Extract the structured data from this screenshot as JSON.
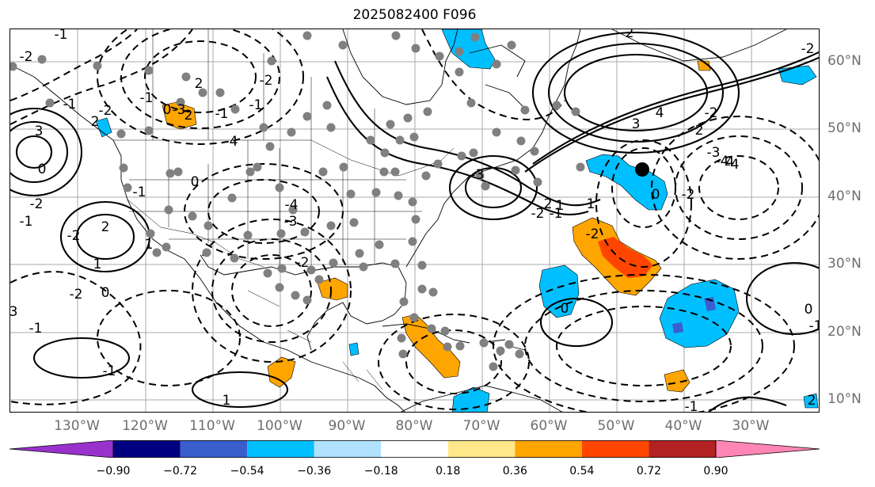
{
  "title": "2025082400 F096",
  "lon_labels": [
    "130°W",
    "120°W",
    "110°W",
    "100°W",
    "90°W",
    "80°W",
    "70°W",
    "60°W",
    "50°W",
    "40°W",
    "30°W"
  ],
  "lat_labels": [
    "60°N",
    "50°N",
    "40°N",
    "30°N",
    "20°N",
    "10°N"
  ],
  "colorbar": {
    "tick_labels": [
      "−0.90",
      "−0.72",
      "−0.54",
      "−0.36",
      "−0.18",
      "0.18",
      "0.36",
      "0.54",
      "0.72",
      "0.90"
    ],
    "colors": [
      "#9932cc",
      "#000080",
      "#3a5fcd",
      "#00bfff",
      "#b0e2ff",
      "#ffffff",
      "#ffe88a",
      "#ffa500",
      "#ff4500",
      "#b22222",
      "#ff85b5"
    ]
  },
  "contour_labels": [
    "3",
    "-1",
    "-2",
    "-1",
    "2",
    "2",
    "2",
    "-3",
    "-4",
    "-2",
    "-1",
    "-1",
    "-1",
    "0",
    "-2",
    "-1",
    "-2",
    "-1",
    "0",
    "1",
    "-4",
    "-3",
    "-2",
    "2",
    "1",
    "0",
    "-2",
    "-1",
    "3",
    "0",
    "-2",
    "-3",
    "-4",
    "4",
    "3",
    "2",
    "2",
    "1",
    "-2",
    "-1",
    "-1",
    "-2",
    "-2",
    "-3",
    "-4",
    "-4",
    "-2",
    "0",
    "0",
    "0",
    "-1",
    "0",
    "-1",
    "2",
    "1",
    "-1",
    "-2",
    "2"
  ],
  "storm_marker": "hurricane-center"
}
